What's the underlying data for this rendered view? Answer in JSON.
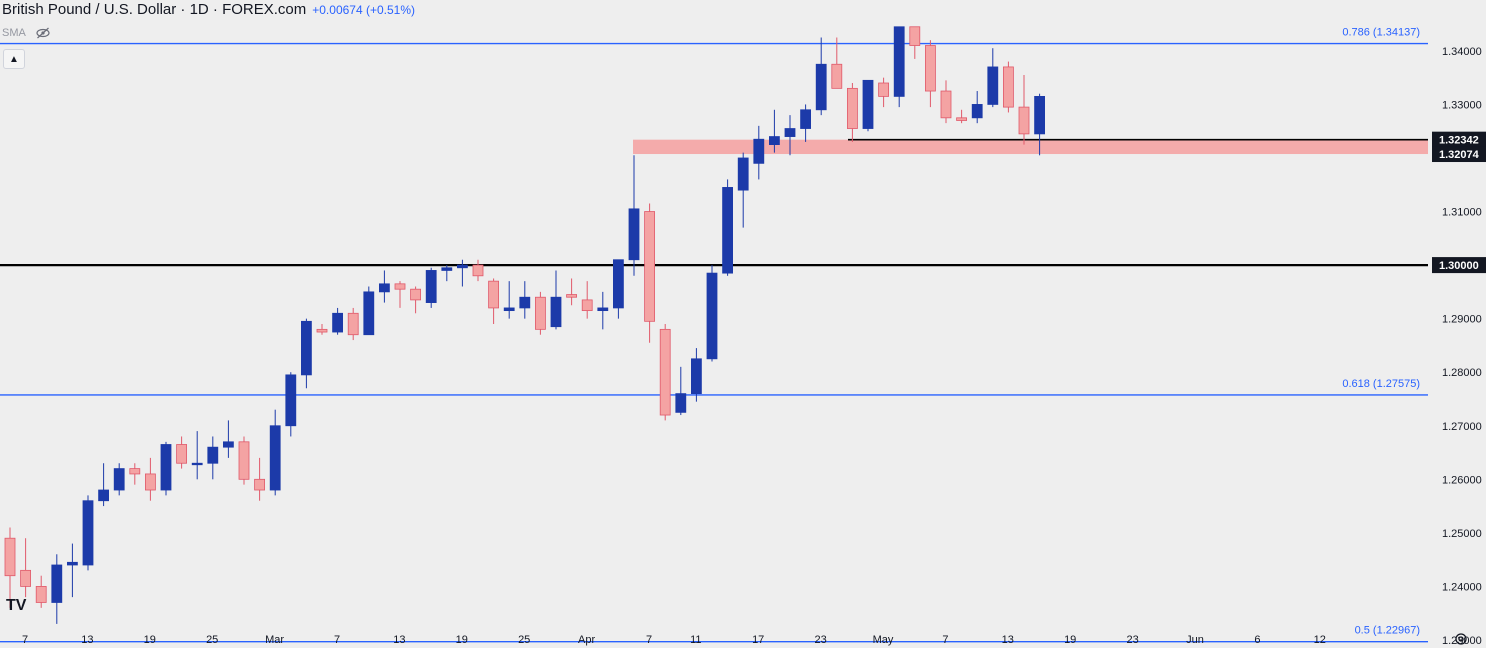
{
  "header": {
    "title": "British Pound / U.S. Dollar · 1D · FOREX.com",
    "change": "+0.00674 (+0.51%)",
    "indicator": "SMA",
    "collapse_icon": "chevron-up-icon",
    "eye_icon": "eye-off-icon",
    "logo_icon": "tradingview-logo-icon",
    "logo_text": "TV",
    "settings_icon": "gear-icon"
  },
  "colors": {
    "background": "#eeeeee",
    "bull": "#1c3aa9",
    "bear": "#f4a3a3",
    "bear_border": "#e0596a",
    "fib_line": "#2962ff",
    "level_line": "#000000",
    "zone": "#f4a3a3"
  },
  "chart_data": {
    "type": "candlestick",
    "title": "British Pound / U.S. Dollar · 1D · FOREX.com",
    "ylim": [
      1.2285,
      1.3495
    ],
    "y_ticks": [
      "1.34000",
      "1.33000",
      "1.32000",
      "1.31000",
      "1.30000",
      "1.29000",
      "1.28000",
      "1.27000",
      "1.26000",
      "1.25000",
      "1.24000",
      "1.23000"
    ],
    "x_ticks": [
      "7",
      "13",
      "19",
      "25",
      "Mar",
      "7",
      "13",
      "19",
      "25",
      "Apr",
      "7",
      "11",
      "17",
      "23",
      "May",
      "7",
      "13",
      "19",
      "23",
      "Jun",
      "6",
      "12"
    ],
    "x_tick_sessions": [
      0,
      4,
      8,
      12,
      16,
      20,
      24,
      28,
      32,
      36,
      40,
      43,
      47,
      51,
      55,
      59,
      63,
      67,
      71,
      75,
      79,
      83
    ],
    "fib_levels": [
      {
        "label": "0.786 (1.34137)",
        "value": 1.34137
      },
      {
        "label": "0.618 (1.27575)",
        "value": 1.27575
      },
      {
        "label": "0.5 (1.22967)",
        "value": 1.22967
      }
    ],
    "horizontal_levels": [
      {
        "label": "1.30000",
        "value": 1.3
      },
      {
        "label": "1.32342",
        "value": 1.32342
      }
    ],
    "support_zone": {
      "top": 1.32342,
      "bottom": 1.32074,
      "top_label": "1.32342",
      "bottom_label": "1.32074"
    },
    "candles": [
      {
        "o": 1.249,
        "h": 1.251,
        "l": 1.236,
        "c": 1.242
      },
      {
        "o": 1.243,
        "h": 1.249,
        "l": 1.238,
        "c": 1.24
      },
      {
        "o": 1.24,
        "h": 1.242,
        "l": 1.236,
        "c": 1.237
      },
      {
        "o": 1.237,
        "h": 1.246,
        "l": 1.233,
        "c": 1.244
      },
      {
        "o": 1.244,
        "h": 1.248,
        "l": 1.238,
        "c": 1.2445
      },
      {
        "o": 1.244,
        "h": 1.257,
        "l": 1.243,
        "c": 1.256
      },
      {
        "o": 1.256,
        "h": 1.263,
        "l": 1.255,
        "c": 1.258
      },
      {
        "o": 1.258,
        "h": 1.263,
        "l": 1.257,
        "c": 1.262
      },
      {
        "o": 1.262,
        "h": 1.263,
        "l": 1.259,
        "c": 1.261
      },
      {
        "o": 1.261,
        "h": 1.264,
        "l": 1.256,
        "c": 1.258
      },
      {
        "o": 1.258,
        "h": 1.267,
        "l": 1.257,
        "c": 1.2665
      },
      {
        "o": 1.2665,
        "h": 1.268,
        "l": 1.262,
        "c": 1.263
      },
      {
        "o": 1.263,
        "h": 1.269,
        "l": 1.26,
        "c": 1.263
      },
      {
        "o": 1.263,
        "h": 1.268,
        "l": 1.26,
        "c": 1.266
      },
      {
        "o": 1.266,
        "h": 1.271,
        "l": 1.264,
        "c": 1.267
      },
      {
        "o": 1.267,
        "h": 1.268,
        "l": 1.259,
        "c": 1.26
      },
      {
        "o": 1.26,
        "h": 1.264,
        "l": 1.256,
        "c": 1.258
      },
      {
        "o": 1.258,
        "h": 1.273,
        "l": 1.257,
        "c": 1.27
      },
      {
        "o": 1.27,
        "h": 1.28,
        "l": 1.268,
        "c": 1.2795
      },
      {
        "o": 1.2795,
        "h": 1.29,
        "l": 1.277,
        "c": 1.2895
      },
      {
        "o": 1.288,
        "h": 1.289,
        "l": 1.287,
        "c": 1.2875
      },
      {
        "o": 1.2875,
        "h": 1.292,
        "l": 1.287,
        "c": 1.291
      },
      {
        "o": 1.291,
        "h": 1.292,
        "l": 1.286,
        "c": 1.287
      },
      {
        "o": 1.287,
        "h": 1.296,
        "l": 1.287,
        "c": 1.295
      },
      {
        "o": 1.295,
        "h": 1.299,
        "l": 1.293,
        "c": 1.2965
      },
      {
        "o": 1.2965,
        "h": 1.297,
        "l": 1.292,
        "c": 1.2955
      },
      {
        "o": 1.2955,
        "h": 1.296,
        "l": 1.291,
        "c": 1.2935
      },
      {
        "o": 1.293,
        "h": 1.2995,
        "l": 1.292,
        "c": 1.299
      },
      {
        "o": 1.299,
        "h": 1.3,
        "l": 1.297,
        "c": 1.2995
      },
      {
        "o": 1.2995,
        "h": 1.301,
        "l": 1.296,
        "c": 1.3
      },
      {
        "o": 1.3,
        "h": 1.301,
        "l": 1.297,
        "c": 1.298
      },
      {
        "o": 1.297,
        "h": 1.2975,
        "l": 1.289,
        "c": 1.292
      },
      {
        "o": 1.2915,
        "h": 1.297,
        "l": 1.29,
        "c": 1.292
      },
      {
        "o": 1.292,
        "h": 1.297,
        "l": 1.29,
        "c": 1.294
      },
      {
        "o": 1.294,
        "h": 1.295,
        "l": 1.287,
        "c": 1.288
      },
      {
        "o": 1.2885,
        "h": 1.299,
        "l": 1.288,
        "c": 1.294
      },
      {
        "o": 1.2945,
        "h": 1.2975,
        "l": 1.2925,
        "c": 1.294
      },
      {
        "o": 1.2935,
        "h": 1.297,
        "l": 1.29,
        "c": 1.2915
      },
      {
        "o": 1.2915,
        "h": 1.295,
        "l": 1.288,
        "c": 1.292
      },
      {
        "o": 1.292,
        "h": 1.301,
        "l": 1.29,
        "c": 1.301
      },
      {
        "o": 1.301,
        "h": 1.3205,
        "l": 1.298,
        "c": 1.3105
      },
      {
        "o": 1.31,
        "h": 1.3115,
        "l": 1.2855,
        "c": 1.2895
      },
      {
        "o": 1.288,
        "h": 1.289,
        "l": 1.271,
        "c": 1.272
      },
      {
        "o": 1.2725,
        "h": 1.281,
        "l": 1.272,
        "c": 1.276
      },
      {
        "o": 1.276,
        "h": 1.2845,
        "l": 1.2745,
        "c": 1.2825
      },
      {
        "o": 1.2825,
        "h": 1.3,
        "l": 1.282,
        "c": 1.2985
      },
      {
        "o": 1.2985,
        "h": 1.316,
        "l": 1.298,
        "c": 1.3145
      },
      {
        "o": 1.314,
        "h": 1.321,
        "l": 1.307,
        "c": 1.32
      },
      {
        "o": 1.319,
        "h": 1.326,
        "l": 1.316,
        "c": 1.3235
      },
      {
        "o": 1.3225,
        "h": 1.329,
        "l": 1.321,
        "c": 1.324
      },
      {
        "o": 1.324,
        "h": 1.328,
        "l": 1.3205,
        "c": 1.3255
      },
      {
        "o": 1.3255,
        "h": 1.33,
        "l": 1.323,
        "c": 1.329
      },
      {
        "o": 1.329,
        "h": 1.3425,
        "l": 1.328,
        "c": 1.3375
      },
      {
        "o": 1.3375,
        "h": 1.3425,
        "l": 1.333,
        "c": 1.333
      },
      {
        "o": 1.333,
        "h": 1.334,
        "l": 1.323,
        "c": 1.3255
      },
      {
        "o": 1.3255,
        "h": 1.3345,
        "l": 1.325,
        "c": 1.3345
      },
      {
        "o": 1.334,
        "h": 1.335,
        "l": 1.3295,
        "c": 1.3315
      },
      {
        "o": 1.3315,
        "h": 1.3445,
        "l": 1.3295,
        "c": 1.3445
      },
      {
        "o": 1.3445,
        "h": 1.3445,
        "l": 1.3385,
        "c": 1.341
      },
      {
        "o": 1.341,
        "h": 1.342,
        "l": 1.3295,
        "c": 1.3325
      },
      {
        "o": 1.3325,
        "h": 1.3345,
        "l": 1.3265,
        "c": 1.3275
      },
      {
        "o": 1.3275,
        "h": 1.329,
        "l": 1.3265,
        "c": 1.327
      },
      {
        "o": 1.3275,
        "h": 1.3325,
        "l": 1.3265,
        "c": 1.33
      },
      {
        "o": 1.33,
        "h": 1.3405,
        "l": 1.3295,
        "c": 1.337
      },
      {
        "o": 1.337,
        "h": 1.338,
        "l": 1.3285,
        "c": 1.3295
      },
      {
        "o": 1.3295,
        "h": 1.3355,
        "l": 1.3225,
        "c": 1.3245
      },
      {
        "o": 1.3245,
        "h": 1.332,
        "l": 1.3205,
        "c": 1.3315
      }
    ]
  }
}
